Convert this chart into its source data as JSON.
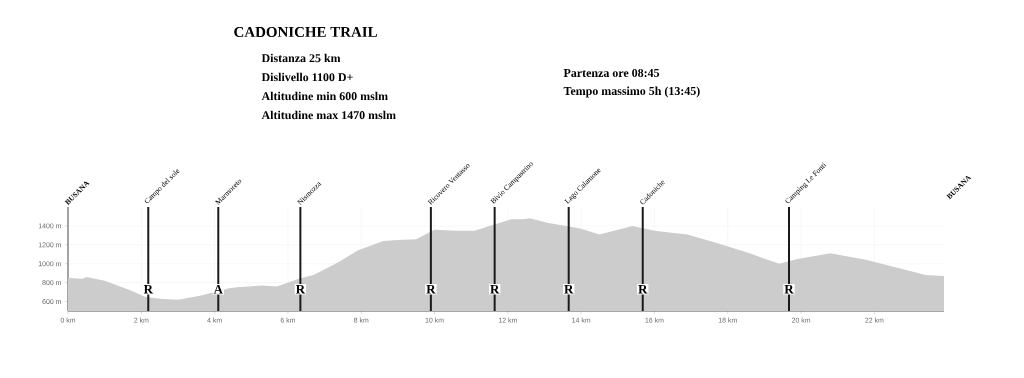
{
  "chart_data": {
    "type": "area",
    "title": "CADONICHE TRAIL",
    "annotations": [
      "Distanza 25 km",
      "Dislivello 1100 D+",
      "Altitudine min 600 mslm",
      "Altitudine max 1470 mslm",
      "Partenza ore 08:45",
      "Tempo massimo 5h (13:45)",
      "BUSANA",
      "BUSANA",
      {
        "text": "R",
        "x": 2.19,
        "y": 730
      },
      {
        "text": "A",
        "x": 4.1,
        "y": 730
      },
      {
        "text": "R",
        "x": 6.34,
        "y": 730
      },
      {
        "text": "R",
        "x": 9.9,
        "y": 730
      },
      {
        "text": "R",
        "x": 11.64,
        "y": 730
      },
      {
        "text": "R",
        "x": 13.66,
        "y": 730
      },
      {
        "text": "R",
        "x": 15.68,
        "y": 730
      },
      {
        "text": "R",
        "x": 19.67,
        "y": 730
      }
    ],
    "x": [
      0,
      0.4,
      0.5,
      1.0,
      1.7,
      2.1,
      2.5,
      3.0,
      3.6,
      4.4,
      4.6,
      5.3,
      5.7,
      6.3,
      6.7,
      7.4,
      7.9,
      8.6,
      9.0,
      9.5,
      10.0,
      10.6,
      11.1,
      11.5,
      12.1,
      12.4,
      12.6,
      13.1,
      13.6,
      14.0,
      14.5,
      15.4,
      16.0,
      16.9,
      17.7,
      18.6,
      19.4,
      19.9,
      20.8,
      21.8,
      22.7,
      23.4,
      23.9
    ],
    "series": [
      {
        "color": "#cccccc",
        "values": [
          850,
          840,
          860,
          820,
          720,
          650,
          630,
          620,
          660,
          740,
          750,
          770,
          760,
          840,
          880,
          1020,
          1140,
          1240,
          1250,
          1260,
          1360,
          1350,
          1350,
          1400,
          1470,
          1470,
          1480,
          1430,
          1400,
          1370,
          1310,
          1400,
          1350,
          1310,
          1220,
          1110,
          1000,
          1050,
          1110,
          1040,
          950,
          880,
          870
        ]
      }
    ],
    "xlim": [
      0,
      23.9
    ],
    "ylim": [
      500,
      1600
    ],
    "xticks": [
      {
        "value": 0,
        "label": "0 km"
      },
      {
        "value": 2,
        "label": "2 km"
      },
      {
        "value": 4,
        "label": "4 km"
      },
      {
        "value": 6,
        "label": "6 km"
      },
      {
        "value": 8,
        "label": "8 km"
      },
      {
        "value": 10,
        "label": "10 km"
      },
      {
        "value": 12,
        "label": "12 km"
      },
      {
        "value": 14,
        "label": "14 km"
      },
      {
        "value": 16,
        "label": "16 km"
      },
      {
        "value": 18,
        "label": "18 km"
      },
      {
        "value": 20,
        "label": "20 km"
      },
      {
        "value": 22,
        "label": "22 km"
      }
    ],
    "yticks": [
      {
        "value": 600,
        "label": "600 m"
      },
      {
        "value": 800,
        "label": "800 m"
      },
      {
        "value": 1000,
        "label": "1000 m"
      },
      {
        "value": 1200,
        "label": "1200 m"
      },
      {
        "value": 1400,
        "label": "1400 m"
      }
    ],
    "ref_lines": [
      {
        "axis": "x",
        "value": 2.19,
        "label": "Campo del sole",
        "color": "#1a1a1a"
      },
      {
        "axis": "x",
        "value": 4.1,
        "label": "Marmoreto",
        "color": "#1a1a1a"
      },
      {
        "axis": "x",
        "value": 6.34,
        "label": "Nismozza",
        "color": "#1a1a1a"
      },
      {
        "axis": "x",
        "value": 9.9,
        "label": "Ricovero Ventasso",
        "color": "#1a1a1a"
      },
      {
        "axis": "x",
        "value": 11.64,
        "label": "Bivio Campastrino",
        "color": "#1a1a1a"
      },
      {
        "axis": "x",
        "value": 13.66,
        "label": "Lago Calamone",
        "color": "#1a1a1a"
      },
      {
        "axis": "x",
        "value": 15.68,
        "label": "Cadoniche",
        "color": "#1a1a1a"
      },
      {
        "axis": "x",
        "value": 19.67,
        "label": "Camping Le Fonti",
        "color": "#1a1a1a"
      }
    ],
    "grid": true
  }
}
